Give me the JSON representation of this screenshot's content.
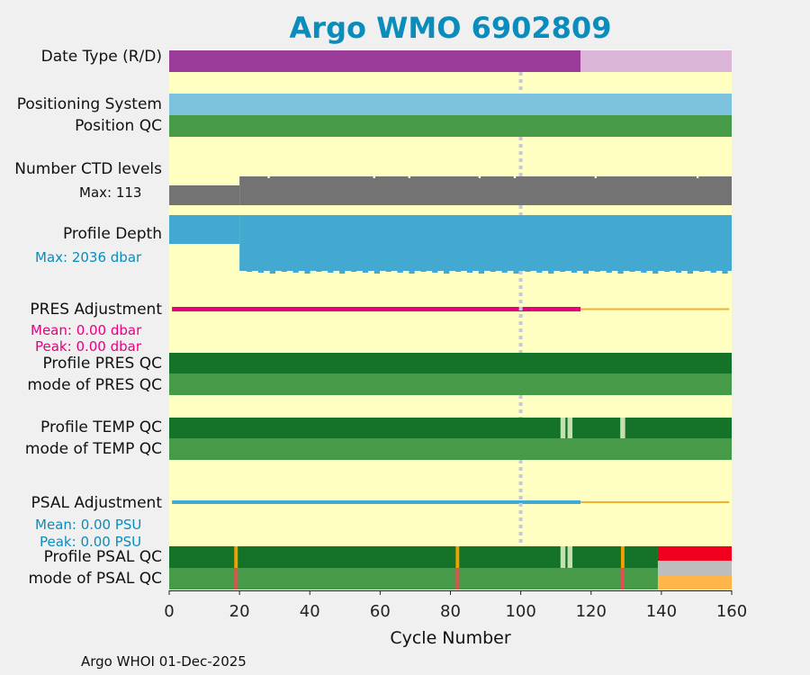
{
  "title": "Argo WMO 6902809",
  "footer": "Argo WHOI 01-Dec-2025",
  "rows": {
    "date_type": "Date Type (R/D)",
    "positioning_system": "Positioning System",
    "position_qc": "Position QC",
    "n_ctd_levels": "Number CTD levels",
    "n_ctd_max": "Max: 113",
    "profile_depth": "Profile Depth",
    "profile_depth_max": "Max: 2036 dbar",
    "pres_adjustment": "PRES Adjustment",
    "pres_mean": "Mean: 0.00 dbar",
    "pres_peak": "Peak: 0.00 dbar",
    "profile_pres_qc": "Profile PRES QC",
    "mode_pres_qc": "mode of PRES QC",
    "profile_temp_qc": "Profile TEMP QC",
    "mode_temp_qc": "mode of TEMP QC",
    "psal_adjustment": "PSAL Adjustment",
    "psal_mean": "Mean: 0.00 PSU",
    "psal_peak": "Peak: 0.00 PSU",
    "profile_psal_qc": "Profile PSAL QC",
    "mode_psal_qc": "mode of PSAL QC"
  },
  "colors": {
    "background": "#ffffc2",
    "title": "#0a8cbc",
    "realtime": "#9b3c9b",
    "delayed": "#dbb6d9",
    "positioning": "#7ec3de",
    "qc_good": "#479a47",
    "qc_good_dark": "#147328",
    "qc_light": "#c7dfb0",
    "levels": "#737373",
    "depth": "#43a9d0",
    "pres": "#e6007e",
    "psal": "#43a9d0",
    "adjust_thin": "#f0b030",
    "qc_orange": "#f0a000",
    "qc_red_mode": "#e05050",
    "qc_red": "#f0001e",
    "qc_grey": "#bdbdbd",
    "qc_amber": "#ffb54a",
    "reference_line": "#c5c8e0"
  },
  "chart_data": {
    "type": "bar",
    "xlabel": "Cycle Number",
    "xlim": [
      0,
      160
    ],
    "xticks": [
      0,
      20,
      40,
      60,
      80,
      100,
      120,
      140,
      160
    ],
    "reference_cycle": 100,
    "date_type": {
      "realtime_until_cycle": 117,
      "delayed_until_cycle": 160
    },
    "ctd_levels": {
      "max": 113,
      "step_cycle": 20
    },
    "profile_depth": {
      "max_dbar": 2036,
      "step_cycle": 20
    },
    "pres_adjustment": {
      "mean": 0.0,
      "peak": 0.0,
      "unit": "dbar",
      "adjusted_until_cycle": 117
    },
    "psal_adjustment": {
      "mean": 0.0,
      "peak": 0.0,
      "unit": "PSU",
      "adjusted_until_cycle": 117
    },
    "temp_qc_flagged_cycles": [
      112,
      114,
      129
    ],
    "psal_qc_flagged_cycles": [
      19,
      82,
      112,
      114,
      129
    ],
    "psal_qc_bad_from_cycle": 139
  }
}
